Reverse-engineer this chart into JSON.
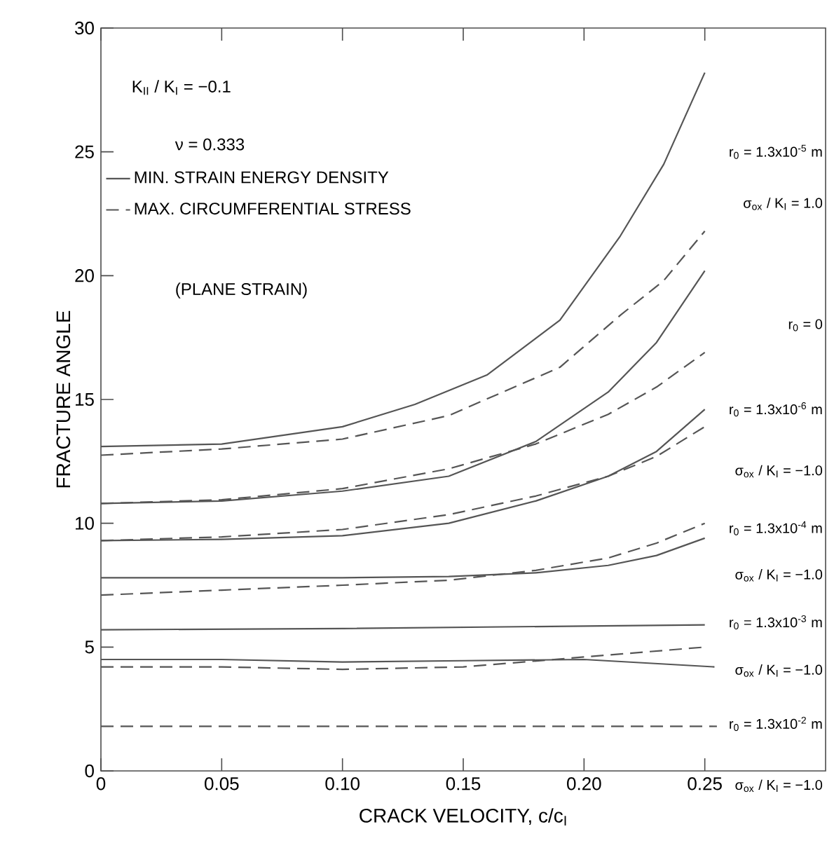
{
  "chart_data": {
    "type": "line",
    "xlabel": "CRACK VELOCITY, c/c$_{I}$",
    "ylabel": "FRACTURE ANGLE",
    "xlim": [
      0,
      0.3
    ],
    "ylim": [
      0,
      30
    ],
    "xticks": [
      0,
      0.05,
      {
        "value": 0.1,
        "label": "0.10"
      },
      0.15,
      {
        "value": 0.2,
        "label": "0.20"
      },
      0.25
    ],
    "yticks": [
      0,
      5,
      10,
      15,
      20,
      25,
      30
    ],
    "marker": "none",
    "legend": "top left",
    "annotations": [
      "K$_{II}$ / K$_{I}$ = −0.1",
      "ν  =  0.333",
      "(PLANE STRAIN)",
      "r$_{0}$ = 1.3x10$^{-5}$ m",
      "σ$_{ox}$ / K$_{I}$ = 1.0",
      "r$_{0}$ = 0",
      "r$_{0}$ = 1.3x10$^{-6}$ m",
      "σ$_{ox}$ / K$_{I}$ = −1.0",
      "r$_{0}$ = 1.3x10$^{-4}$ m",
      "σ$_{ox}$ / K$_{I}$ = −1.0",
      "r$_{0}$ = 1.3x10$^{-3}$ m",
      "σ$_{ox}$ / K$_{I}$ = −1.0",
      "r$_{0}$ = 1.3x10$^{-2}$ m",
      "σ$_{ox}$ / K$_{I}$ = −1.0"
    ],
    "series": [
      {
        "name": "MIN. STRAIN ENERGY DENSITY",
        "color": "#555555",
        "line_style": "solid",
        "x": [
          0,
          0.05,
          0.1,
          0.13,
          0.16,
          0.19,
          0.215,
          0.233,
          0.25
        ],
        "values": [
          13.1,
          13.2,
          13.9,
          14.8,
          16.0,
          18.2,
          21.6,
          24.5,
          28.2
        ]
      },
      {
        "name": "MAX. CIRCUMFERENTIAL STRESS",
        "color": "#555555",
        "line_style": "dashed",
        "x": [
          0,
          0.05,
          0.1,
          0.144,
          0.19,
          0.215,
          0.233,
          0.25
        ],
        "values": [
          12.75,
          13.0,
          13.4,
          14.35,
          16.3,
          18.4,
          19.8,
          21.8
        ]
      },
      {
        "color": "#555555",
        "line_style": "solid",
        "x": [
          0,
          0.05,
          0.1,
          0.144,
          0.18,
          0.21,
          0.23,
          0.25
        ],
        "values": [
          10.8,
          10.9,
          11.3,
          11.9,
          13.3,
          15.3,
          17.3,
          20.2
        ]
      },
      {
        "color": "#555555",
        "line_style": "dashed",
        "x": [
          0,
          0.05,
          0.1,
          0.144,
          0.18,
          0.21,
          0.23,
          0.25
        ],
        "values": [
          10.8,
          10.95,
          11.4,
          12.2,
          13.2,
          14.4,
          15.5,
          16.9
        ]
      },
      {
        "color": "#555555",
        "line_style": "solid",
        "x": [
          0,
          0.05,
          0.1,
          0.144,
          0.18,
          0.21,
          0.23,
          0.25
        ],
        "values": [
          9.3,
          9.35,
          9.5,
          10.0,
          10.9,
          11.9,
          12.9,
          14.6
        ]
      },
      {
        "color": "#555555",
        "line_style": "dashed",
        "x": [
          0,
          0.05,
          0.1,
          0.144,
          0.18,
          0.21,
          0.23,
          0.25
        ],
        "values": [
          9.3,
          9.45,
          9.75,
          10.35,
          11.1,
          11.9,
          12.7,
          13.9
        ]
      },
      {
        "color": "#555555",
        "line_style": "solid",
        "x": [
          0,
          0.05,
          0.1,
          0.144,
          0.18,
          0.21,
          0.23,
          0.25
        ],
        "values": [
          7.8,
          7.8,
          7.8,
          7.85,
          8.0,
          8.3,
          8.7,
          9.4
        ]
      },
      {
        "color": "#555555",
        "line_style": "dashed",
        "x": [
          0,
          0.05,
          0.1,
          0.144,
          0.18,
          0.21,
          0.23,
          0.25
        ],
        "values": [
          7.1,
          7.3,
          7.5,
          7.7,
          8.1,
          8.6,
          9.2,
          10.0
        ]
      },
      {
        "color": "#555555",
        "line_style": "solid",
        "x": [
          0,
          0.1,
          0.2,
          0.25
        ],
        "values": [
          5.7,
          5.75,
          5.85,
          5.9
        ]
      },
      {
        "color": "#555555",
        "line_style": "dashed",
        "x": [
          0,
          0.05,
          0.1,
          0.15,
          0.2,
          0.25
        ],
        "values": [
          4.2,
          4.2,
          4.1,
          4.2,
          4.6,
          5.0
        ]
      },
      {
        "color": "#555555",
        "line_style": "solid",
        "x": [
          0,
          0.05,
          0.1,
          0.15,
          0.2,
          0.254
        ],
        "values": [
          4.5,
          4.5,
          4.4,
          4.45,
          4.5,
          4.2
        ]
      },
      {
        "color": "#555555",
        "line_style": "dashed",
        "x": [
          0,
          0.255
        ],
        "values": [
          1.8,
          1.8
        ]
      }
    ]
  }
}
